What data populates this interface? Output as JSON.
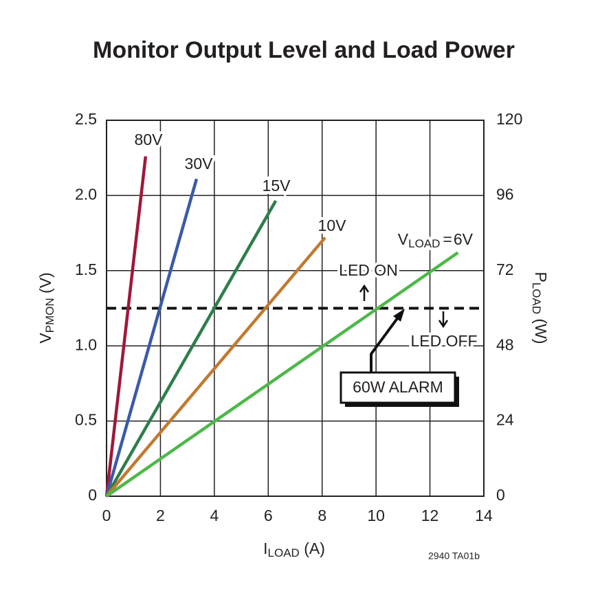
{
  "chart_data": {
    "type": "line",
    "title": "Monitor Output Level and Load Power",
    "xlabel": [
      "I",
      "LOAD",
      " (A)"
    ],
    "ylabel": [
      "V",
      "PMON",
      " (V)"
    ],
    "y2label": [
      "P",
      "LOAD",
      " (W)"
    ],
    "xlim": [
      0,
      14
    ],
    "xticks": [
      0,
      2,
      4,
      6,
      8,
      10,
      12,
      14
    ],
    "ylim": [
      0,
      2.5
    ],
    "yticks": [
      0,
      0.5,
      {
        "value": 1,
        "label": "1.0"
      },
      1.5,
      {
        "value": 2,
        "label": "2.0"
      },
      2.5
    ],
    "y2lim": [
      0,
      120
    ],
    "y2ticks": [
      0,
      24,
      48,
      72,
      96,
      120
    ],
    "grid": true,
    "series": [
      {
        "name": "80V",
        "color": "#a0173a",
        "x": [
          0,
          1.45
        ],
        "values": [
          0,
          2.26
        ]
      },
      {
        "name": "30V",
        "color": "#3a5aa8",
        "x": [
          0,
          3.34
        ],
        "values": [
          0,
          2.11
        ]
      },
      {
        "name": "15V",
        "color": "#2e7d4a",
        "x": [
          0,
          6.28
        ],
        "values": [
          0,
          1.965
        ]
      },
      {
        "name": "10V",
        "color": "#c07a30",
        "x": [
          0,
          8.11
        ],
        "values": [
          0,
          1.72
        ]
      },
      {
        "name": "6V",
        "color": "#4cb848",
        "x": [
          0,
          13.04
        ],
        "values": [
          0,
          1.62
        ]
      }
    ],
    "vload_label": [
      "V",
      "LOAD",
      "="
    ],
    "threshold": 1.25,
    "led_on": "LED ON",
    "led_off": "LED OFF",
    "alarm": "60W ALARM",
    "footnote": "2940 TA01b"
  }
}
